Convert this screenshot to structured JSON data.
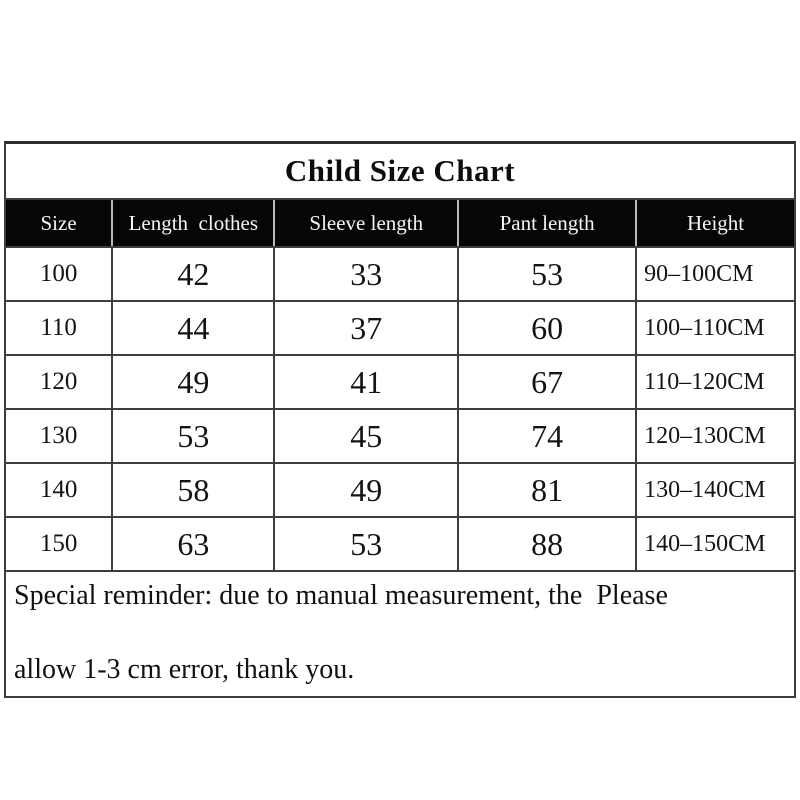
{
  "title": "Child Size Chart",
  "chart_data": {
    "type": "table",
    "title": "Child Size Chart",
    "columns": [
      "Size",
      "Length  clothes",
      "Sleeve length",
      "Pant length",
      "Height"
    ],
    "rows": [
      [
        "100",
        "42",
        "33",
        "53",
        "90–100CM"
      ],
      [
        "110",
        "44",
        "37",
        "60",
        "100–110CM"
      ],
      [
        "120",
        "49",
        "41",
        "67",
        "110–120CM"
      ],
      [
        "130",
        "53",
        "45",
        "74",
        "120–130CM"
      ],
      [
        "140",
        "58",
        "49",
        "81",
        "130–140CM"
      ],
      [
        "150",
        "63",
        "53",
        "88",
        "140–150CM"
      ]
    ],
    "note_line1": "Special reminder: due to manual measurement, the  Please",
    "note_line2": "allow 1-3 cm error, thank you.",
    "colors": {
      "header_bg": "#060606",
      "header_text": "#f5f5f5",
      "border": "#3e3e3e",
      "text": "#141414",
      "background": "#ffffff"
    }
  }
}
